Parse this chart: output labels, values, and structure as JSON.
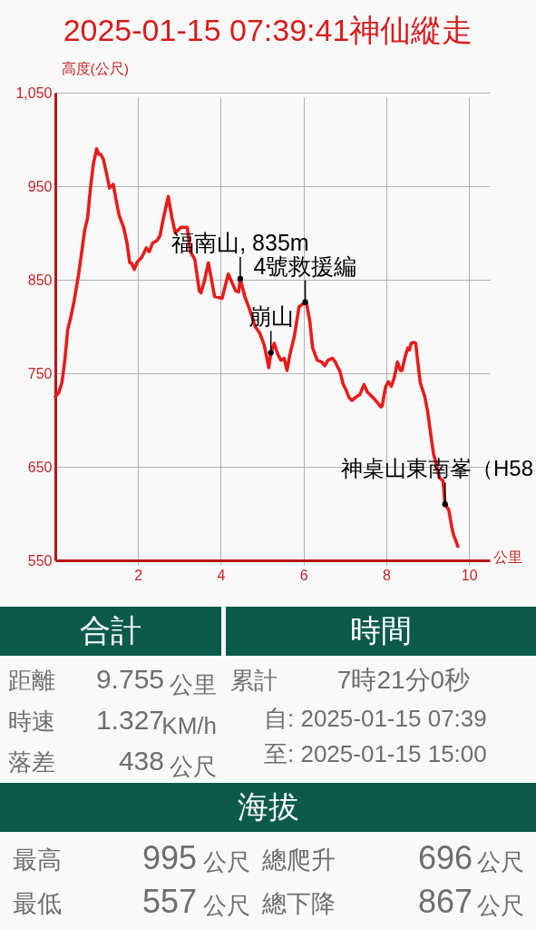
{
  "chart_data": [
    {
      "type": "line",
      "title": "2025-01-15 07:39:41神仙縱走",
      "xlabel": "公里",
      "ylabel": "高度(公尺)",
      "x": [
        0,
        0.08,
        0.16,
        0.23,
        0.3,
        0.37,
        0.45,
        0.56,
        0.63,
        0.71,
        0.78,
        0.85,
        0.92,
        1.0,
        1.05,
        1.1,
        1.16,
        1.25,
        1.31,
        1.4,
        1.47,
        1.54,
        1.65,
        1.73,
        1.8,
        1.84,
        1.91,
        1.98,
        2.09,
        2.2,
        2.27,
        2.35,
        2.46,
        2.53,
        2.6,
        2.68,
        2.73,
        2.82,
        2.9,
        2.97,
        3.04,
        3.19,
        3.26,
        3.37,
        3.48,
        3.52,
        3.6,
        3.7,
        3.85,
        4.03,
        4.18,
        4.36,
        4.43,
        4.47,
        4.58,
        4.69,
        4.83,
        4.94,
        5.05,
        5.16,
        5.21,
        5.29,
        5.38,
        5.45,
        5.53,
        5.6,
        5.67,
        5.78,
        5.89,
        6.04,
        6.07,
        6.15,
        6.22,
        6.33,
        6.44,
        6.51,
        6.59,
        6.7,
        6.77,
        6.81,
        6.88,
        6.96,
        7.03,
        7.1,
        7.17,
        7.28,
        7.36,
        7.46,
        7.54,
        7.68,
        7.76,
        7.87,
        7.9,
        7.98,
        8.05,
        8.12,
        8.19,
        8.27,
        8.34,
        8.38,
        8.45,
        8.52,
        8.56,
        8.6,
        8.67,
        8.71,
        8.74,
        8.82,
        8.93,
        9.0,
        9.07,
        9.14,
        9.22,
        9.29,
        9.37,
        9.42,
        9.51,
        9.58,
        9.62,
        9.73
      ],
      "series": [
        {
          "color": "#e81c1c",
          "values": [
            725,
            729,
            740,
            764,
            797,
            809,
            826,
            855,
            877,
            903,
            916,
            948,
            974,
            990,
            984,
            984,
            979,
            961,
            948,
            952,
            935,
            919,
            906,
            890,
            868,
            868,
            861,
            869,
            874,
            884,
            880,
            889,
            892,
            897,
            913,
            929,
            939,
            916,
            900,
            903,
            906,
            906,
            880,
            872,
            838,
            836,
            848,
            868,
            832,
            830,
            856,
            838,
            837,
            851,
            832,
            819,
            800,
            793,
            780,
            756,
            772,
            782,
            770,
            764,
            766,
            753,
            770,
            790,
            821,
            826,
            825,
            806,
            777,
            764,
            762,
            758,
            764,
            766,
            762,
            758,
            752,
            738,
            732,
            724,
            721,
            725,
            727,
            738,
            730,
            724,
            720,
            714,
            715,
            735,
            741,
            736,
            745,
            762,
            753,
            753,
            767,
            777,
            775,
            782,
            783,
            782,
            770,
            740,
            725,
            709,
            686,
            664,
            651,
            638,
            635,
            610,
            604,
            586,
            578,
            565
          ]
        }
      ],
      "xlim": [
        0,
        10.5
      ],
      "ylim": [
        550,
        1050
      ],
      "xticks": [
        2,
        4,
        6,
        8,
        10
      ],
      "yticks": [
        550,
        650,
        750,
        850,
        950,
        {
          "value": 1050,
          "label": "1,050"
        }
      ],
      "grid": true,
      "annotations": [
        {
          "text": "福南山, 835m",
          "x": 4.47,
          "y": 851
        },
        {
          "text": "4號救援編",
          "x": 6.04,
          "y": 826
        },
        {
          "text": "崩山",
          "x": 5.21,
          "y": 772
        },
        {
          "text": "神桌山東南峯（H58",
          "x": 9.42,
          "y": 610
        }
      ]
    },
    {
      "type": "other",
      "title": "合計",
      "annotations": [
        "距離",
        "9.755",
        "公里",
        "時速",
        "1.327",
        "KM/h",
        "落差",
        "438",
        "公尺"
      ]
    },
    {
      "type": "other",
      "title": "時間",
      "annotations": [
        "累計",
        "7時21分0秒",
        "自: 2025-01-15 07:39",
        "至: 2025-01-15 15:00"
      ]
    },
    {
      "type": "other",
      "title": "海拔",
      "annotations": [
        "最高",
        "995",
        "公尺",
        "總爬升",
        "696",
        "公尺",
        "最低",
        "557",
        "公尺",
        "總下降",
        "867",
        "公尺"
      ]
    }
  ]
}
